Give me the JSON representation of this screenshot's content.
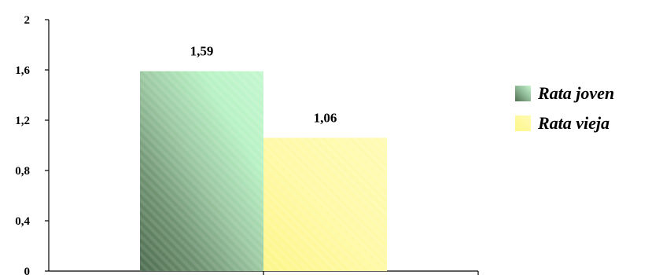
{
  "chart_data": {
    "type": "bar",
    "categories": [
      ""
    ],
    "series": [
      {
        "name": "Rata joven",
        "values": [
          1.59
        ],
        "label": "1,59",
        "color": "#b8f2c4"
      },
      {
        "name": "Rata vieja",
        "values": [
          1.06
        ],
        "label": "1,06",
        "color": "#fdfaa0"
      }
    ],
    "ylim": [
      0,
      2
    ],
    "yticks": [
      0,
      0.4,
      0.8,
      1.2,
      1.6,
      2
    ],
    "ytick_labels": [
      "0",
      "0,4",
      "0,8",
      "1,2",
      "1,6",
      "2"
    ],
    "legend_position": "right",
    "grid": false
  }
}
